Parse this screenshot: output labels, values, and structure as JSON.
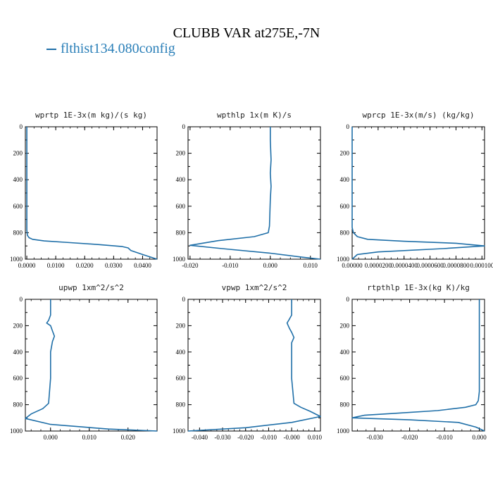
{
  "page": {
    "title": "CLUBB VAR at275E,-7N",
    "legend": [
      {
        "name": "flthist134.080config",
        "color": "#1f6fa8"
      }
    ]
  },
  "chart_data": [
    {
      "type": "line",
      "title": "wprtp   1E-3x(m kg)/(s kg)",
      "xlim": [
        -0.0005,
        0.045
      ],
      "ylim": [
        1000,
        0
      ],
      "xticks": [
        0.0,
        0.01,
        0.02,
        0.03,
        0.04
      ],
      "xtick_labels": [
        "0.0000",
        "0.0100",
        "0.0200",
        "0.0300",
        "0.0400"
      ],
      "yticks": [
        0,
        200,
        400,
        600,
        800,
        1000
      ],
      "series": [
        {
          "name": "flthist134.080config",
          "x": [
            0.0,
            0.0,
            0.0,
            0.0,
            0.0,
            0.0002,
            0.0008,
            0.002,
            0.006,
            0.015,
            0.025,
            0.033,
            0.035,
            0.036,
            0.04,
            0.045
          ],
          "y": [
            0,
            200,
            400,
            600,
            780,
            820,
            838,
            850,
            862,
            875,
            890,
            905,
            915,
            935,
            965,
            1000
          ]
        }
      ]
    },
    {
      "type": "line",
      "title": "wpthlp   1x(m K)/s",
      "xlim": [
        -0.0205,
        0.0125
      ],
      "ylim": [
        1000,
        0
      ],
      "xticks": [
        -0.02,
        -0.01,
        0.0,
        0.01
      ],
      "xtick_labels": [
        "-0.020",
        "-0.010",
        "0.000",
        "0.010"
      ],
      "yticks": [
        0,
        200,
        400,
        600,
        800,
        1000
      ],
      "series": [
        {
          "name": "flthist134.080config",
          "x": [
            0.0,
            0.0,
            0.0002,
            0.0,
            0.0002,
            0.0,
            -0.0001,
            -0.0002,
            -0.0005,
            -0.004,
            -0.013,
            -0.02,
            -0.012,
            0.0,
            0.008,
            0.0125
          ],
          "y": [
            0,
            100,
            250,
            350,
            450,
            550,
            650,
            750,
            800,
            830,
            860,
            895,
            920,
            955,
            985,
            1000
          ]
        }
      ]
    },
    {
      "type": "line",
      "title": "wprcp   1E-3x(m/s) (kg/kg)",
      "xlim": [
        0.0,
        0.000102
      ],
      "ylim": [
        1000,
        0
      ],
      "xticks": [
        0.0,
        2e-05,
        4e-05,
        6e-05,
        8e-05,
        0.0001
      ],
      "xtick_labels": [
        "0.00000",
        "0.0000200",
        "0.0000400",
        "0.0000600",
        "0.0000800",
        "0.000100"
      ],
      "yticks": [
        0,
        200,
        400,
        600,
        800,
        1000
      ],
      "series": [
        {
          "name": "flthist134.080config",
          "x": [
            0.0,
            0.0,
            0.0,
            1e-06,
            4e-06,
            1.2e-05,
            4e-05,
            8e-05,
            0.000102,
            7e-05,
            2e-05,
            4e-06,
            0.0
          ],
          "y": [
            0,
            400,
            760,
            800,
            830,
            850,
            865,
            880,
            900,
            920,
            945,
            965,
            1000
          ]
        }
      ]
    },
    {
      "type": "line",
      "title": "upwp   1xm^2/s^2",
      "xlim": [
        -0.0065,
        0.0275
      ],
      "ylim": [
        1000,
        0
      ],
      "xticks": [
        0.0,
        0.01,
        0.02
      ],
      "xtick_labels": [
        "0.000",
        "0.010",
        "0.020"
      ],
      "yticks": [
        0,
        200,
        400,
        600,
        800,
        1000
      ],
      "series": [
        {
          "name": "flthist134.080config",
          "x": [
            0.0,
            0.0,
            -0.0005,
            -0.001,
            0.0,
            0.0005,
            0.001,
            0.0005,
            0.0,
            0.0,
            -0.0005,
            -0.002,
            -0.005,
            -0.0065,
            0.0,
            0.015,
            0.0275
          ],
          "y": [
            0,
            120,
            160,
            180,
            200,
            240,
            280,
            320,
            400,
            600,
            790,
            830,
            870,
            905,
            950,
            985,
            1000
          ]
        }
      ]
    },
    {
      "type": "line",
      "title": "vpwp   1xm^2/s^2",
      "xlim": [
        -0.045,
        0.0125
      ],
      "ylim": [
        1000,
        0
      ],
      "xticks": [
        -0.04,
        -0.03,
        -0.02,
        -0.01,
        0.0,
        0.01
      ],
      "xtick_labels": [
        "-0.040",
        "-0.030",
        "-0.020",
        "-0.010",
        "-0.000",
        "0.010"
      ],
      "yticks": [
        0,
        200,
        400,
        600,
        800,
        1000
      ],
      "series": [
        {
          "name": "flthist134.080config",
          "x": [
            0.0,
            0.0,
            -0.001,
            -0.002,
            -0.001,
            0.0,
            0.001,
            0.0,
            0.0,
            0.0,
            0.001,
            0.004,
            0.008,
            0.0125,
            0.0,
            -0.02,
            -0.045
          ],
          "y": [
            0,
            120,
            150,
            180,
            220,
            250,
            290,
            330,
            400,
            600,
            790,
            820,
            850,
            890,
            935,
            975,
            1000
          ]
        }
      ]
    },
    {
      "type": "line",
      "title": "rtpthlp   1E-3x(kg K)/kg",
      "xlim": [
        -0.0365,
        0.0015
      ],
      "ylim": [
        1000,
        0
      ],
      "xticks": [
        -0.03,
        -0.02,
        -0.01,
        0.0
      ],
      "xtick_labels": [
        "-0.030",
        "-0.020",
        "-0.010",
        "0.000"
      ],
      "yticks": [
        0,
        200,
        400,
        600,
        800,
        1000
      ],
      "series": [
        {
          "name": "flthist134.080config",
          "x": [
            0.0,
            0.0,
            0.0,
            -0.0003,
            -0.001,
            -0.004,
            -0.012,
            -0.024,
            -0.033,
            -0.0365,
            -0.02,
            -0.006,
            -0.001,
            0.0015
          ],
          "y": [
            0,
            400,
            700,
            770,
            800,
            820,
            845,
            865,
            880,
            900,
            915,
            935,
            970,
            1000
          ]
        }
      ]
    }
  ]
}
